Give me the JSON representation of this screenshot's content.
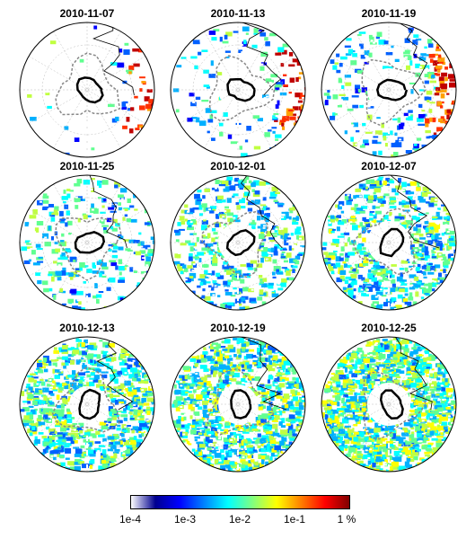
{
  "panels": [
    {
      "date": "2010-11-07"
    },
    {
      "date": "2010-11-13"
    },
    {
      "date": "2010-11-19"
    },
    {
      "date": "2010-11-25"
    },
    {
      "date": "2010-12-01"
    },
    {
      "date": "2010-12-07"
    },
    {
      "date": "2010-12-13"
    },
    {
      "date": "2010-12-19"
    },
    {
      "date": "2010-12-25"
    }
  ],
  "colorbar": {
    "ticks": [
      "1e-4",
      "1e-3",
      "1e-2",
      "1e-1",
      "1 %"
    ],
    "colors": [
      "#ffffff",
      "#00008f",
      "#0000ff",
      "#0080ff",
      "#00ffff",
      "#80ff80",
      "#ffff00",
      "#ff8000",
      "#ff0000",
      "#800000"
    ]
  }
}
